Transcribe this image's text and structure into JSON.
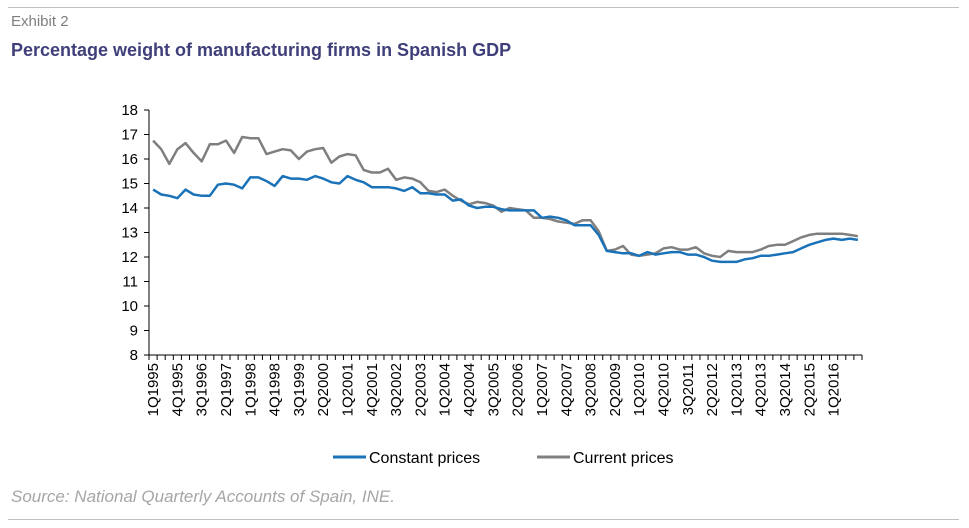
{
  "header": {
    "exhibit": "Exhibit 2",
    "title": "Percentage weight of manufacturing firms in Spanish GDP"
  },
  "footer": {
    "source": "Source: National Quarterly Accounts of Spain, INE."
  },
  "colors": {
    "constant": "#1a72b8",
    "current": "#7f7f7f",
    "title": "#3f3f7a",
    "axis": "#000000"
  },
  "chart_data": {
    "type": "line",
    "title": "Percentage weight of manufacturing firms in Spanish GDP",
    "xlabel": "",
    "ylabel": "",
    "ylim": [
      8,
      18
    ],
    "yticks": [
      8,
      9,
      10,
      11,
      12,
      13,
      14,
      15,
      16,
      17,
      18
    ],
    "grid": false,
    "legend_position": "bottom",
    "x": [
      "1Q1995",
      "2Q1995",
      "3Q1995",
      "4Q1995",
      "1Q1996",
      "2Q1996",
      "3Q1996",
      "4Q1996",
      "1Q1997",
      "2Q1997",
      "3Q1997",
      "4Q1997",
      "1Q1998",
      "2Q1998",
      "3Q1998",
      "4Q1998",
      "1Q1999",
      "2Q1999",
      "3Q1999",
      "4Q1999",
      "1Q2000",
      "2Q2000",
      "3Q2000",
      "4Q2000",
      "1Q2001",
      "2Q2001",
      "3Q2001",
      "4Q2001",
      "1Q2002",
      "2Q2002",
      "3Q2002",
      "4Q2002",
      "1Q2003",
      "2Q2003",
      "3Q2003",
      "4Q2003",
      "1Q2004",
      "2Q2004",
      "3Q2004",
      "4Q2004",
      "1Q2005",
      "2Q2005",
      "3Q2005",
      "4Q2005",
      "1Q2006",
      "2Q2006",
      "3Q2006",
      "4Q2006",
      "1Q2007",
      "2Q2007",
      "3Q2007",
      "4Q2007",
      "1Q2008",
      "2Q2008",
      "3Q2008",
      "4Q2008",
      "1Q2009",
      "2Q2009",
      "3Q2009",
      "4Q2009",
      "1Q2010",
      "2Q2010",
      "3Q2010",
      "4Q2010",
      "1Q2011",
      "2Q2011",
      "3Q2011",
      "4Q2011",
      "1Q2012",
      "2Q2012",
      "3Q2012",
      "4Q2012",
      "1Q2013",
      "2Q2013",
      "3Q2013",
      "4Q2013",
      "1Q2014",
      "2Q2014",
      "3Q2014",
      "4Q2014",
      "1Q2015",
      "2Q2015",
      "3Q2015",
      "4Q2015",
      "1Q2016",
      "2Q2016",
      "3Q2016",
      "4Q2016"
    ],
    "x_tick_labels": [
      "1Q1995",
      "4Q1995",
      "3Q1996",
      "2Q1997",
      "1Q1998",
      "4Q1998",
      "3Q1999",
      "2Q2000",
      "1Q2001",
      "4Q2001",
      "3Q2002",
      "2Q2003",
      "1Q2004",
      "4Q2004",
      "3Q2005",
      "2Q2006",
      "1Q2007",
      "4Q2007",
      "3Q2008",
      "2Q2009",
      "1Q2010",
      "4Q2010",
      "3Q2011",
      "2Q2012",
      "1Q2013",
      "4Q2013",
      "3Q2014",
      "2Q2015",
      "1Q2016"
    ],
    "series": [
      {
        "name": "Constant prices",
        "color": "#1a72b8",
        "values": [
          14.75,
          14.55,
          14.5,
          14.4,
          14.75,
          14.55,
          14.5,
          14.5,
          14.95,
          15.0,
          14.95,
          14.8,
          15.25,
          15.25,
          15.1,
          14.9,
          15.3,
          15.2,
          15.2,
          15.15,
          15.3,
          15.2,
          15.05,
          15.0,
          15.3,
          15.15,
          15.05,
          14.85,
          14.85,
          14.85,
          14.8,
          14.7,
          14.85,
          14.6,
          14.6,
          14.55,
          14.55,
          14.3,
          14.35,
          14.1,
          14.0,
          14.05,
          14.05,
          13.95,
          13.9,
          13.9,
          13.9,
          13.9,
          13.6,
          13.65,
          13.6,
          13.5,
          13.3,
          13.3,
          13.3,
          12.9,
          12.25,
          12.2,
          12.15,
          12.15,
          12.05,
          12.2,
          12.1,
          12.15,
          12.2,
          12.2,
          12.1,
          12.1,
          12.0,
          11.85,
          11.8,
          11.8,
          11.8,
          11.9,
          11.95,
          12.05,
          12.05,
          12.1,
          12.15,
          12.2,
          12.35,
          12.5,
          12.6,
          12.7,
          12.75,
          12.7,
          12.75,
          12.7
        ]
      },
      {
        "name": "Current prices",
        "color": "#7f7f7f",
        "values": [
          16.75,
          16.4,
          15.8,
          16.4,
          16.65,
          16.25,
          15.9,
          16.6,
          16.6,
          16.75,
          16.25,
          16.9,
          16.85,
          16.85,
          16.2,
          16.3,
          16.4,
          16.35,
          16.0,
          16.3,
          16.4,
          16.45,
          15.85,
          16.1,
          16.2,
          16.15,
          15.55,
          15.45,
          15.45,
          15.6,
          15.15,
          15.25,
          15.2,
          15.05,
          14.7,
          14.65,
          14.75,
          14.5,
          14.3,
          14.15,
          14.25,
          14.2,
          14.1,
          13.85,
          14.0,
          13.95,
          13.9,
          13.6,
          13.6,
          13.55,
          13.45,
          13.4,
          13.35,
          13.5,
          13.5,
          13.05,
          12.25,
          12.3,
          12.45,
          12.1,
          12.05,
          12.1,
          12.15,
          12.35,
          12.4,
          12.3,
          12.3,
          12.4,
          12.15,
          12.05,
          12.0,
          12.25,
          12.2,
          12.2,
          12.2,
          12.3,
          12.45,
          12.5,
          12.5,
          12.65,
          12.8,
          12.9,
          12.95,
          12.95,
          12.95,
          12.95,
          12.9,
          12.85
        ]
      }
    ]
  }
}
